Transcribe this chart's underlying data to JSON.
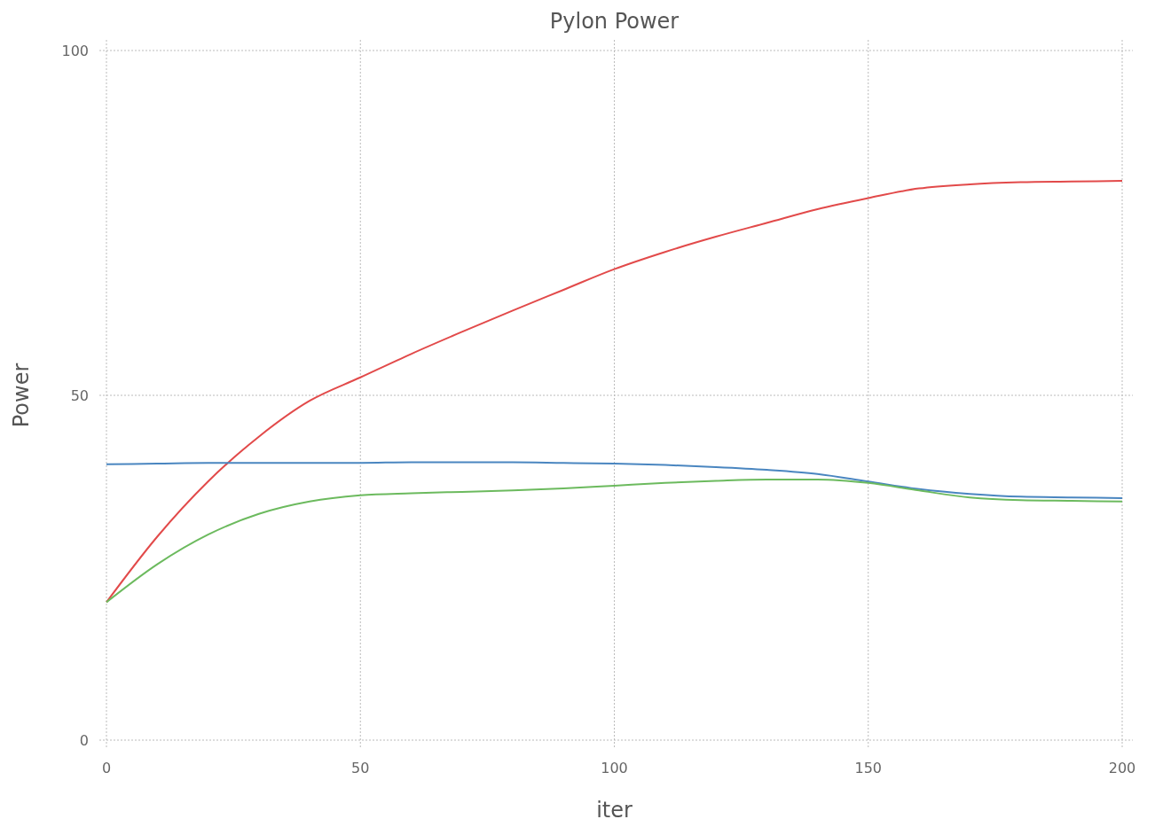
{
  "chart_data": {
    "type": "line",
    "title": "Pylon Power",
    "xlabel": "iter",
    "ylabel": "Power",
    "xlim": [
      0,
      200
    ],
    "xticks": [
      0,
      50,
      100,
      150,
      200
    ],
    "ylim": [
      0,
      100
    ],
    "yticks": [
      0,
      50,
      100
    ],
    "grid": true,
    "x": [
      0,
      10,
      20,
      30,
      40,
      50,
      60,
      70,
      80,
      90,
      100,
      110,
      120,
      130,
      140,
      150,
      160,
      170,
      180,
      190,
      200
    ],
    "series": [
      {
        "color": "#e24a4a",
        "values": [
          20,
          29.5,
          37.5,
          44,
          49.2,
          52.6,
          56,
          59.2,
          62.3,
          65.3,
          68.3,
          70.8,
          73,
          75,
          77,
          78.6,
          80,
          80.6,
          80.9,
          81,
          81.1
        ]
      },
      {
        "color": "#4a86c0",
        "values": [
          40,
          40.1,
          40.2,
          40.2,
          40.2,
          40.2,
          40.3,
          40.3,
          40.3,
          40.2,
          40.1,
          39.9,
          39.6,
          39.2,
          38.6,
          37.5,
          36.4,
          35.7,
          35.3,
          35.2,
          35.1
        ]
      },
      {
        "color": "#6cba5e",
        "values": [
          20,
          25.5,
          29.8,
          32.8,
          34.6,
          35.5,
          35.8,
          36,
          36.2,
          36.5,
          36.9,
          37.3,
          37.6,
          37.8,
          37.8,
          37.3,
          36.2,
          35.2,
          34.8,
          34.7,
          34.6
        ]
      }
    ]
  }
}
